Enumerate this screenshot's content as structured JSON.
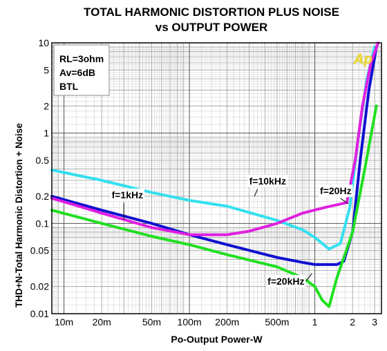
{
  "chart_data": {
    "type": "line",
    "title": "TOTAL HARMONIC DISTORTION PLUS NOISE",
    "subtitle": "vs OUTPUT POWER",
    "xlabel": "Po-Output Power-W",
    "ylabel": "THD+N-Total Harmonic Distortion + Noise",
    "xscale": "log",
    "yscale": "log",
    "xlim": [
      0.008,
      3.4
    ],
    "ylim": [
      0.01,
      10
    ],
    "grid": true,
    "x_ticks": [
      {
        "v": 0.01,
        "label": "10m"
      },
      {
        "v": 0.02,
        "label": "20m"
      },
      {
        "v": 0.05,
        "label": "50m"
      },
      {
        "v": 0.1,
        "label": "100m"
      },
      {
        "v": 0.2,
        "label": "200m"
      },
      {
        "v": 0.5,
        "label": "500m"
      },
      {
        "v": 1,
        "label": "1"
      },
      {
        "v": 2,
        "label": "2"
      },
      {
        "v": 3,
        "label": "3"
      }
    ],
    "y_ticks": [
      {
        "v": 0.01,
        "label": "0.01"
      },
      {
        "v": 0.02,
        "label": "0.02"
      },
      {
        "v": 0.05,
        "label": "0.05"
      },
      {
        "v": 0.1,
        "label": "0.1"
      },
      {
        "v": 0.2,
        "label": "0.2"
      },
      {
        "v": 0.5,
        "label": "0.5"
      },
      {
        "v": 1,
        "label": "1"
      },
      {
        "v": 2,
        "label": "2"
      },
      {
        "v": 5,
        "label": "5"
      },
      {
        "v": 10,
        "label": "10"
      }
    ],
    "conditions": [
      "RL=3ohm",
      "Av=6dB",
      "BTL"
    ],
    "series": [
      {
        "name": "f=10kHz",
        "color": "#33e0f0",
        "points": [
          [
            0.008,
            0.39
          ],
          [
            0.02,
            0.3
          ],
          [
            0.05,
            0.22
          ],
          [
            0.1,
            0.18
          ],
          [
            0.2,
            0.155
          ],
          [
            0.5,
            0.108
          ],
          [
            0.8,
            0.085
          ],
          [
            1.0,
            0.07
          ],
          [
            1.3,
            0.052
          ],
          [
            1.6,
            0.06
          ],
          [
            1.9,
            0.15
          ],
          [
            2.2,
            0.8
          ],
          [
            2.6,
            4
          ],
          [
            3.0,
            9
          ]
        ]
      },
      {
        "name": "f=1kHz",
        "color": "#1010d0",
        "points": [
          [
            0.008,
            0.2
          ],
          [
            0.02,
            0.14
          ],
          [
            0.05,
            0.1
          ],
          [
            0.1,
            0.075
          ],
          [
            0.2,
            0.058
          ],
          [
            0.5,
            0.042
          ],
          [
            0.8,
            0.037
          ],
          [
            1.0,
            0.035
          ],
          [
            1.5,
            0.035
          ],
          [
            1.7,
            0.038
          ],
          [
            2.0,
            0.08
          ],
          [
            2.3,
            0.5
          ],
          [
            2.7,
            3
          ],
          [
            3.1,
            9
          ]
        ]
      },
      {
        "name": "f=20Hz",
        "color": "#e020e0",
        "points": [
          [
            0.008,
            0.19
          ],
          [
            0.02,
            0.13
          ],
          [
            0.05,
            0.09
          ],
          [
            0.1,
            0.075
          ],
          [
            0.2,
            0.075
          ],
          [
            0.3,
            0.082
          ],
          [
            0.5,
            0.1
          ],
          [
            0.8,
            0.13
          ],
          [
            1.2,
            0.15
          ],
          [
            1.8,
            0.17
          ],
          [
            2.1,
            0.5
          ],
          [
            2.4,
            2
          ],
          [
            2.8,
            6
          ],
          [
            3.2,
            10
          ]
        ]
      },
      {
        "name": "f=20kHz",
        "color": "#20e020",
        "points": [
          [
            0.008,
            0.14
          ],
          [
            0.02,
            0.1
          ],
          [
            0.05,
            0.072
          ],
          [
            0.1,
            0.058
          ],
          [
            0.2,
            0.045
          ],
          [
            0.5,
            0.033
          ],
          [
            0.8,
            0.025
          ],
          [
            1.0,
            0.02
          ],
          [
            1.15,
            0.014
          ],
          [
            1.3,
            0.012
          ],
          [
            1.5,
            0.025
          ],
          [
            2.0,
            0.08
          ],
          [
            2.5,
            0.4
          ],
          [
            3.1,
            2
          ]
        ]
      }
    ],
    "annotations": [
      {
        "text": "f=10kHz",
        "x": 0.3,
        "y": 0.27
      },
      {
        "text": "f=1kHz",
        "x": 0.024,
        "y": 0.19
      },
      {
        "text": "f=20Hz",
        "x": 1.1,
        "y": 0.21
      },
      {
        "text": "f=20kHz",
        "x": 0.42,
        "y": 0.021
      }
    ],
    "watermark": "Ap"
  }
}
